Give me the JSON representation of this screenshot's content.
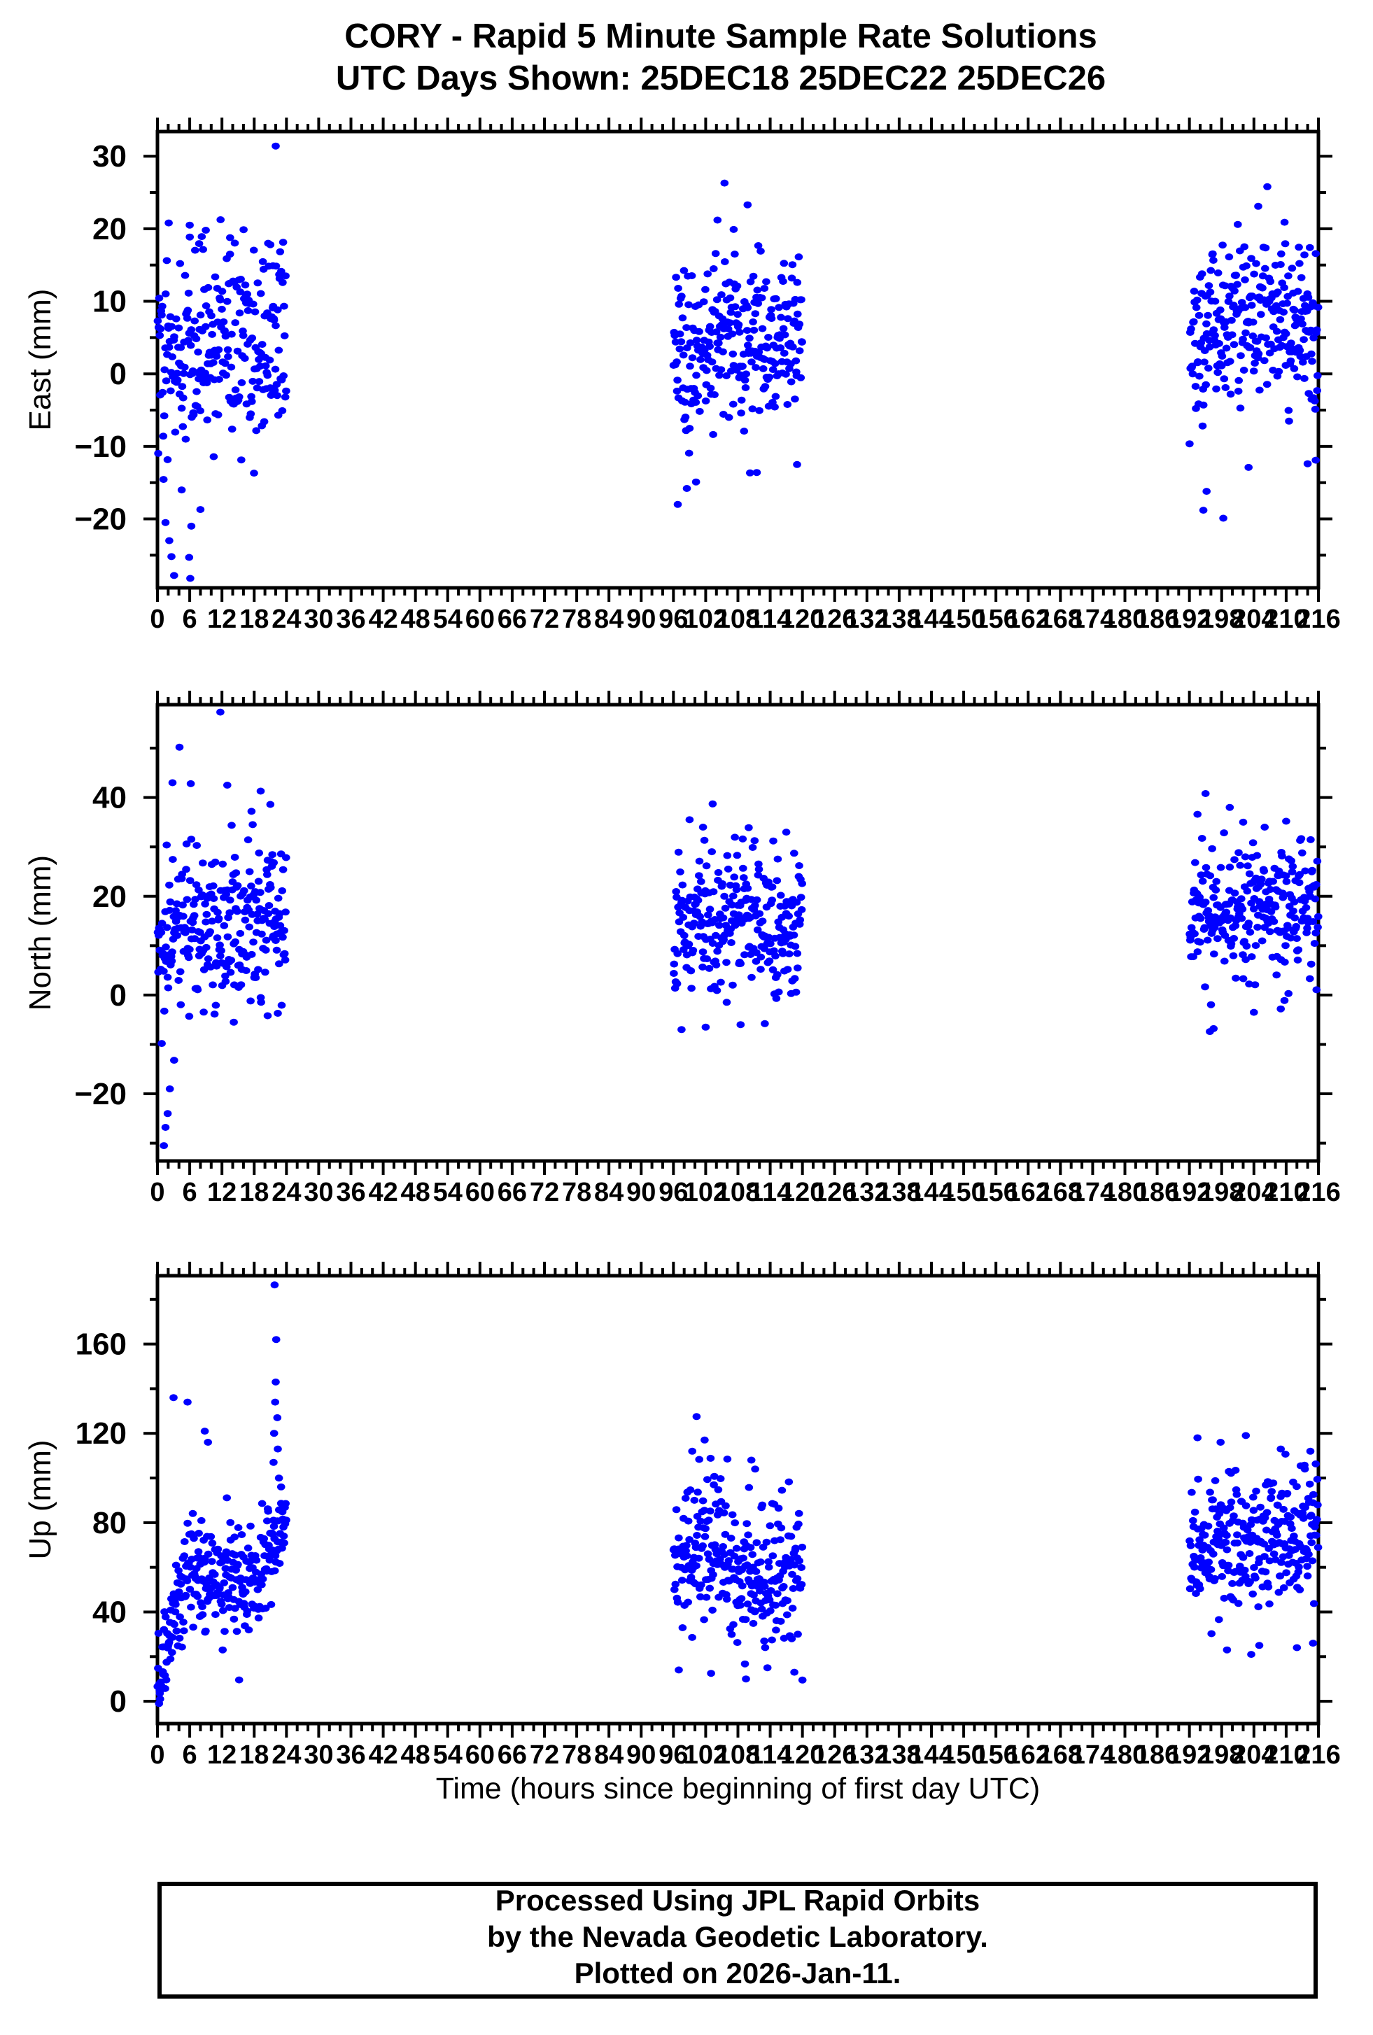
{
  "title": {
    "line1": "CORY - Rapid 5 Minute Sample Rate Solutions",
    "line2": "UTC Days Shown:  25DEC18 25DEC22 25DEC26"
  },
  "xaxis": {
    "title": "Time (hours since beginning of first day UTC)",
    "min": 0,
    "max": 216,
    "major": 6,
    "minor": 2
  },
  "footer": {
    "line1": "Processed Using JPL Rapid Orbits",
    "line2": "by the Nevada Geodetic Laboratory.",
    "line3": "Plotted on 2026-Jan-11."
  },
  "colors": {
    "dot": "#0000ff",
    "frame": "#000000",
    "text": "#000000",
    "background": "#ffffff"
  },
  "seed": 42,
  "chart_data": [
    {
      "type": "scatter",
      "id": "east",
      "ylabel": "East (mm)",
      "xlabel": "Time (hours since beginning of first day UTC)",
      "ylim": [
        -29.5,
        33.4
      ],
      "ytick_major": 10,
      "ytick_minor": 5,
      "xlim": [
        0,
        216
      ],
      "xtick_major": 6,
      "xtick_minor": 2,
      "grid": false,
      "clusters": [
        {
          "x_start": 0,
          "x_end": 24,
          "count": 258,
          "sd": 7.0,
          "clip": [
            -17,
            21.5
          ],
          "mean_profile": [
            [
              0,
              2
            ],
            [
              2,
              1
            ],
            [
              4,
              3
            ],
            [
              8,
              4
            ],
            [
              12,
              5
            ],
            [
              16,
              4.5
            ],
            [
              20,
              4
            ],
            [
              24,
              4.5
            ]
          ],
          "outliers": [
            [
              22,
              31.4
            ],
            [
              2.2,
              -23
            ],
            [
              2.6,
              -25.2
            ],
            [
              3.1,
              -27.8
            ],
            [
              5.9,
              -25.3
            ],
            [
              6.1,
              -28.2
            ],
            [
              6.3,
              -21
            ],
            [
              1.5,
              -20.5
            ],
            [
              8,
              -18.7
            ],
            [
              4.5,
              -16
            ],
            [
              2.1,
              20.8
            ],
            [
              6,
              20.5
            ],
            [
              9,
              19.8
            ],
            [
              13.5,
              16.5
            ],
            [
              21,
              17.8
            ],
            [
              21.5,
              14.9
            ]
          ]
        },
        {
          "x_start": 96,
          "x_end": 120,
          "count": 262,
          "sd": 6.2,
          "clip": [
            -14.5,
            18.5
          ],
          "mean_profile": [
            [
              96,
              1
            ],
            [
              100,
              3
            ],
            [
              104,
              5
            ],
            [
              108,
              5
            ],
            [
              112,
              4
            ],
            [
              116,
              3
            ],
            [
              120,
              3.5
            ]
          ],
          "outliers": [
            [
              105.5,
              26.3
            ],
            [
              109.8,
              23.3
            ],
            [
              104.2,
              21.2
            ],
            [
              107.2,
              19.9
            ],
            [
              96.8,
              -18
            ],
            [
              98.5,
              -15.8
            ],
            [
              100.2,
              -14.9
            ],
            [
              111.5,
              -13.6
            ],
            [
              119,
              -12.5
            ]
          ]
        },
        {
          "x_start": 192,
          "x_end": 216,
          "count": 262,
          "sd": 6.0,
          "clip": [
            -13,
            18
          ],
          "mean_profile": [
            [
              192,
              4
            ],
            [
              196,
              6
            ],
            [
              200,
              7
            ],
            [
              204,
              8
            ],
            [
              208,
              7
            ],
            [
              212,
              5
            ],
            [
              216,
              4.5
            ]
          ],
          "outliers": [
            [
              206.5,
              25.8
            ],
            [
              204.8,
              23.1
            ],
            [
              201,
              20.6
            ],
            [
              209.7,
              20.9
            ],
            [
              213.4,
              16.4
            ],
            [
              194.6,
              -18.8
            ],
            [
              195.2,
              -16.2
            ],
            [
              198.3,
              -19.9
            ],
            [
              203,
              -12.9
            ],
            [
              214,
              -12.4
            ],
            [
              215.5,
              -11.9
            ]
          ]
        }
      ]
    },
    {
      "type": "scatter",
      "id": "north",
      "ylabel": "North (mm)",
      "xlabel": "Time (hours since beginning of first day UTC)",
      "ylim": [
        -33.6,
        58.8
      ],
      "ytick_major": 20,
      "ytick_minor": 10,
      "xlim": [
        0,
        216
      ],
      "xtick_major": 6,
      "xtick_minor": 2,
      "grid": false,
      "clusters": [
        {
          "x_start": 0,
          "x_end": 24,
          "count": 258,
          "sd": 8.5,
          "clip": [
            -8,
            36
          ],
          "mean_profile": [
            [
              0,
              8
            ],
            [
              2,
              10
            ],
            [
              4,
              12
            ],
            [
              8,
              14
            ],
            [
              12,
              16
            ],
            [
              16,
              15
            ],
            [
              20,
              15
            ],
            [
              24,
              16
            ]
          ],
          "outliers": [
            [
              11.7,
              57.3
            ],
            [
              4.1,
              50.2
            ],
            [
              2.8,
              43
            ],
            [
              6.2,
              42.8
            ],
            [
              13,
              42.5
            ],
            [
              19.2,
              41.3
            ],
            [
              21,
              38.6
            ],
            [
              17.5,
              37.2
            ],
            [
              1.2,
              -30.5
            ],
            [
              1.5,
              -26.8
            ],
            [
              1.9,
              -24
            ],
            [
              2.3,
              -19
            ],
            [
              3.1,
              -13.2
            ],
            [
              14.2,
              -5.5
            ],
            [
              20.5,
              -4.2
            ],
            [
              0.8,
              -9.8
            ]
          ]
        },
        {
          "x_start": 96,
          "x_end": 120,
          "count": 260,
          "sd": 7.5,
          "clip": [
            -5.5,
            32
          ],
          "mean_profile": [
            [
              96,
              12
            ],
            [
              100,
              14
            ],
            [
              104,
              16
            ],
            [
              108,
              17
            ],
            [
              112,
              16
            ],
            [
              116,
              15
            ],
            [
              120,
              16
            ]
          ],
          "outliers": [
            [
              103.3,
              38.7
            ],
            [
              99,
              35.5
            ],
            [
              101.5,
              34
            ],
            [
              110,
              33.9
            ],
            [
              117,
              33
            ],
            [
              97.5,
              -7
            ],
            [
              102,
              -6.5
            ],
            [
              108.5,
              -6
            ],
            [
              113,
              -5.8
            ]
          ]
        },
        {
          "x_start": 192,
          "x_end": 216,
          "count": 260,
          "sd": 7.5,
          "clip": [
            -4,
            33
          ],
          "mean_profile": [
            [
              192,
              14
            ],
            [
              196,
              16
            ],
            [
              200,
              17
            ],
            [
              204,
              18
            ],
            [
              208,
              17
            ],
            [
              212,
              18
            ],
            [
              216,
              19
            ]
          ],
          "outliers": [
            [
              195,
              40.8
            ],
            [
              199.5,
              38
            ],
            [
              193.5,
              36.6
            ],
            [
              202,
              35
            ],
            [
              210,
              35.2
            ],
            [
              206,
              34
            ],
            [
              196.5,
              -6.8
            ],
            [
              195.8,
              -7.4
            ],
            [
              204,
              -3.5
            ],
            [
              209,
              -2.8
            ]
          ]
        }
      ]
    },
    {
      "type": "scatter",
      "id": "up",
      "ylabel": "Up (mm)",
      "xlabel": "Time (hours since beginning of first day UTC)",
      "ylim": [
        -10,
        190.6
      ],
      "ytick_major": 40,
      "ytick_minor": 20,
      "xlim": [
        0,
        216
      ],
      "xtick_major": 6,
      "xtick_minor": 2,
      "grid": false,
      "clusters": [
        {
          "x_start": 0,
          "x_end": 24,
          "count": 272,
          "sd": 13,
          "clip": [
            2,
            95
          ],
          "mean_profile": [
            [
              0,
              4
            ],
            [
              0.8,
              10
            ],
            [
              1.6,
              20
            ],
            [
              2.5,
              32
            ],
            [
              4,
              48
            ],
            [
              6,
              55
            ],
            [
              8,
              58
            ],
            [
              10,
              52
            ],
            [
              12,
              56
            ],
            [
              14,
              60
            ],
            [
              16,
              52
            ],
            [
              18,
              55
            ],
            [
              20,
              62
            ],
            [
              22,
              72
            ],
            [
              23,
              80
            ],
            [
              24,
              82
            ]
          ],
          "outliers": [
            [
              0.3,
              -1
            ],
            [
              0.5,
              1
            ],
            [
              1.1,
              12
            ],
            [
              0.4,
              5
            ],
            [
              3.0,
              136
            ],
            [
              5.6,
              134
            ],
            [
              8.8,
              121
            ],
            [
              9.4,
              116
            ],
            [
              21.8,
              186.5
            ],
            [
              22.1,
              162
            ],
            [
              22.0,
              143
            ],
            [
              21.9,
              134
            ],
            [
              22.3,
              127
            ],
            [
              21.7,
              120
            ],
            [
              22.4,
              113
            ],
            [
              21.6,
              107
            ],
            [
              22.6,
              100
            ],
            [
              23.0,
              96
            ]
          ]
        },
        {
          "x_start": 96,
          "x_end": 120,
          "count": 272,
          "sd": 16,
          "clip": [
            9,
            117
          ],
          "mean_profile": [
            [
              96,
              55
            ],
            [
              98,
              60
            ],
            [
              100,
              65
            ],
            [
              102,
              70
            ],
            [
              104,
              72
            ],
            [
              106,
              68
            ],
            [
              108,
              60
            ],
            [
              110,
              55
            ],
            [
              112,
              52
            ],
            [
              114,
              58
            ],
            [
              116,
              62
            ],
            [
              118,
              60
            ],
            [
              120,
              58
            ]
          ],
          "outliers": [
            [
              100.3,
              127.5
            ],
            [
              101.8,
              117
            ],
            [
              99.5,
              112
            ],
            [
              110.5,
              108
            ],
            [
              111.2,
              104
            ],
            [
              97,
              14
            ],
            [
              103,
              12.5
            ],
            [
              109.5,
              10
            ],
            [
              113.5,
              15
            ],
            [
              118.5,
              13
            ],
            [
              120,
              9.5
            ]
          ]
        },
        {
          "x_start": 192,
          "x_end": 216,
          "count": 272,
          "sd": 15,
          "clip": [
            22,
            112
          ],
          "mean_profile": [
            [
              192,
              70
            ],
            [
              194,
              72
            ],
            [
              196,
              75
            ],
            [
              198,
              73
            ],
            [
              200,
              70
            ],
            [
              202,
              72
            ],
            [
              204,
              75
            ],
            [
              206,
              73
            ],
            [
              208,
              74
            ],
            [
              210,
              76
            ],
            [
              212,
              75
            ],
            [
              214,
              78
            ],
            [
              216,
              77
            ]
          ],
          "outliers": [
            [
              193.5,
              118
            ],
            [
              197.8,
              116
            ],
            [
              202.5,
              119
            ],
            [
              209,
              113
            ],
            [
              214.5,
              112
            ],
            [
              199,
              23
            ],
            [
              203.5,
              21
            ],
            [
              205,
              25
            ],
            [
              212,
              24
            ],
            [
              215,
              26
            ]
          ]
        }
      ]
    }
  ]
}
